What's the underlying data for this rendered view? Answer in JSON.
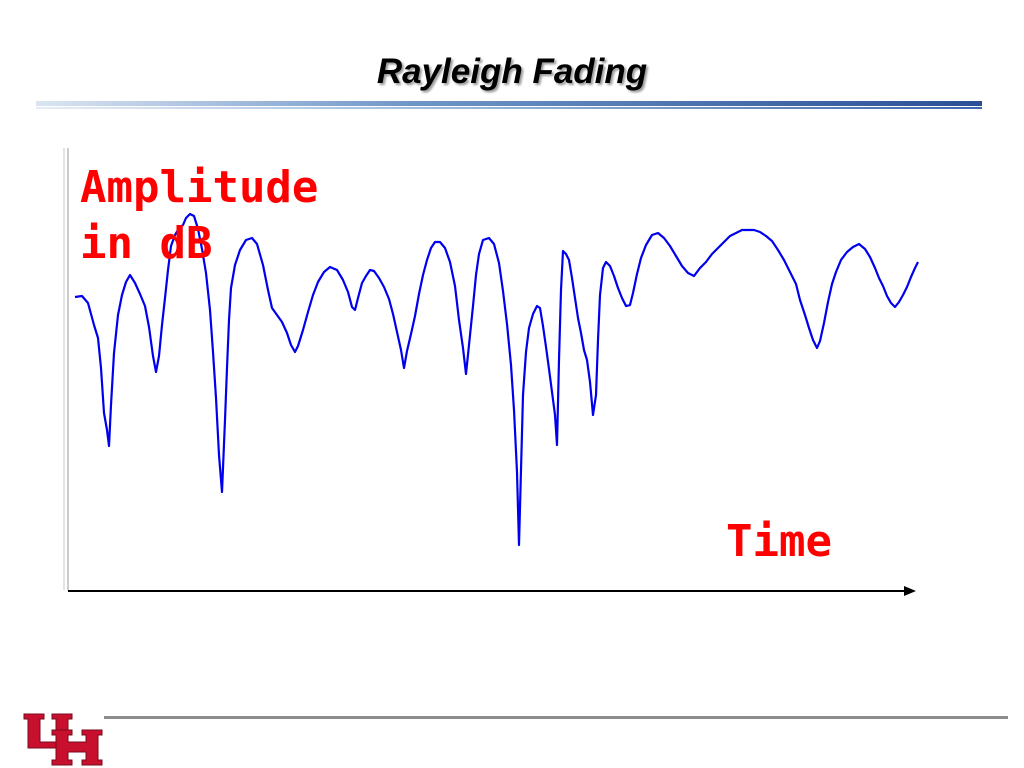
{
  "slide": {
    "title": "Rayleigh Fading"
  },
  "figure": {
    "y_label_line1": "Amplitude",
    "y_label_line2": "in dB",
    "x_label": "Time",
    "signal_color": "#0000ee",
    "label_color": "#ff0000"
  },
  "footer": {
    "logo_text": "UH",
    "logo_color": "#c8102e"
  }
}
